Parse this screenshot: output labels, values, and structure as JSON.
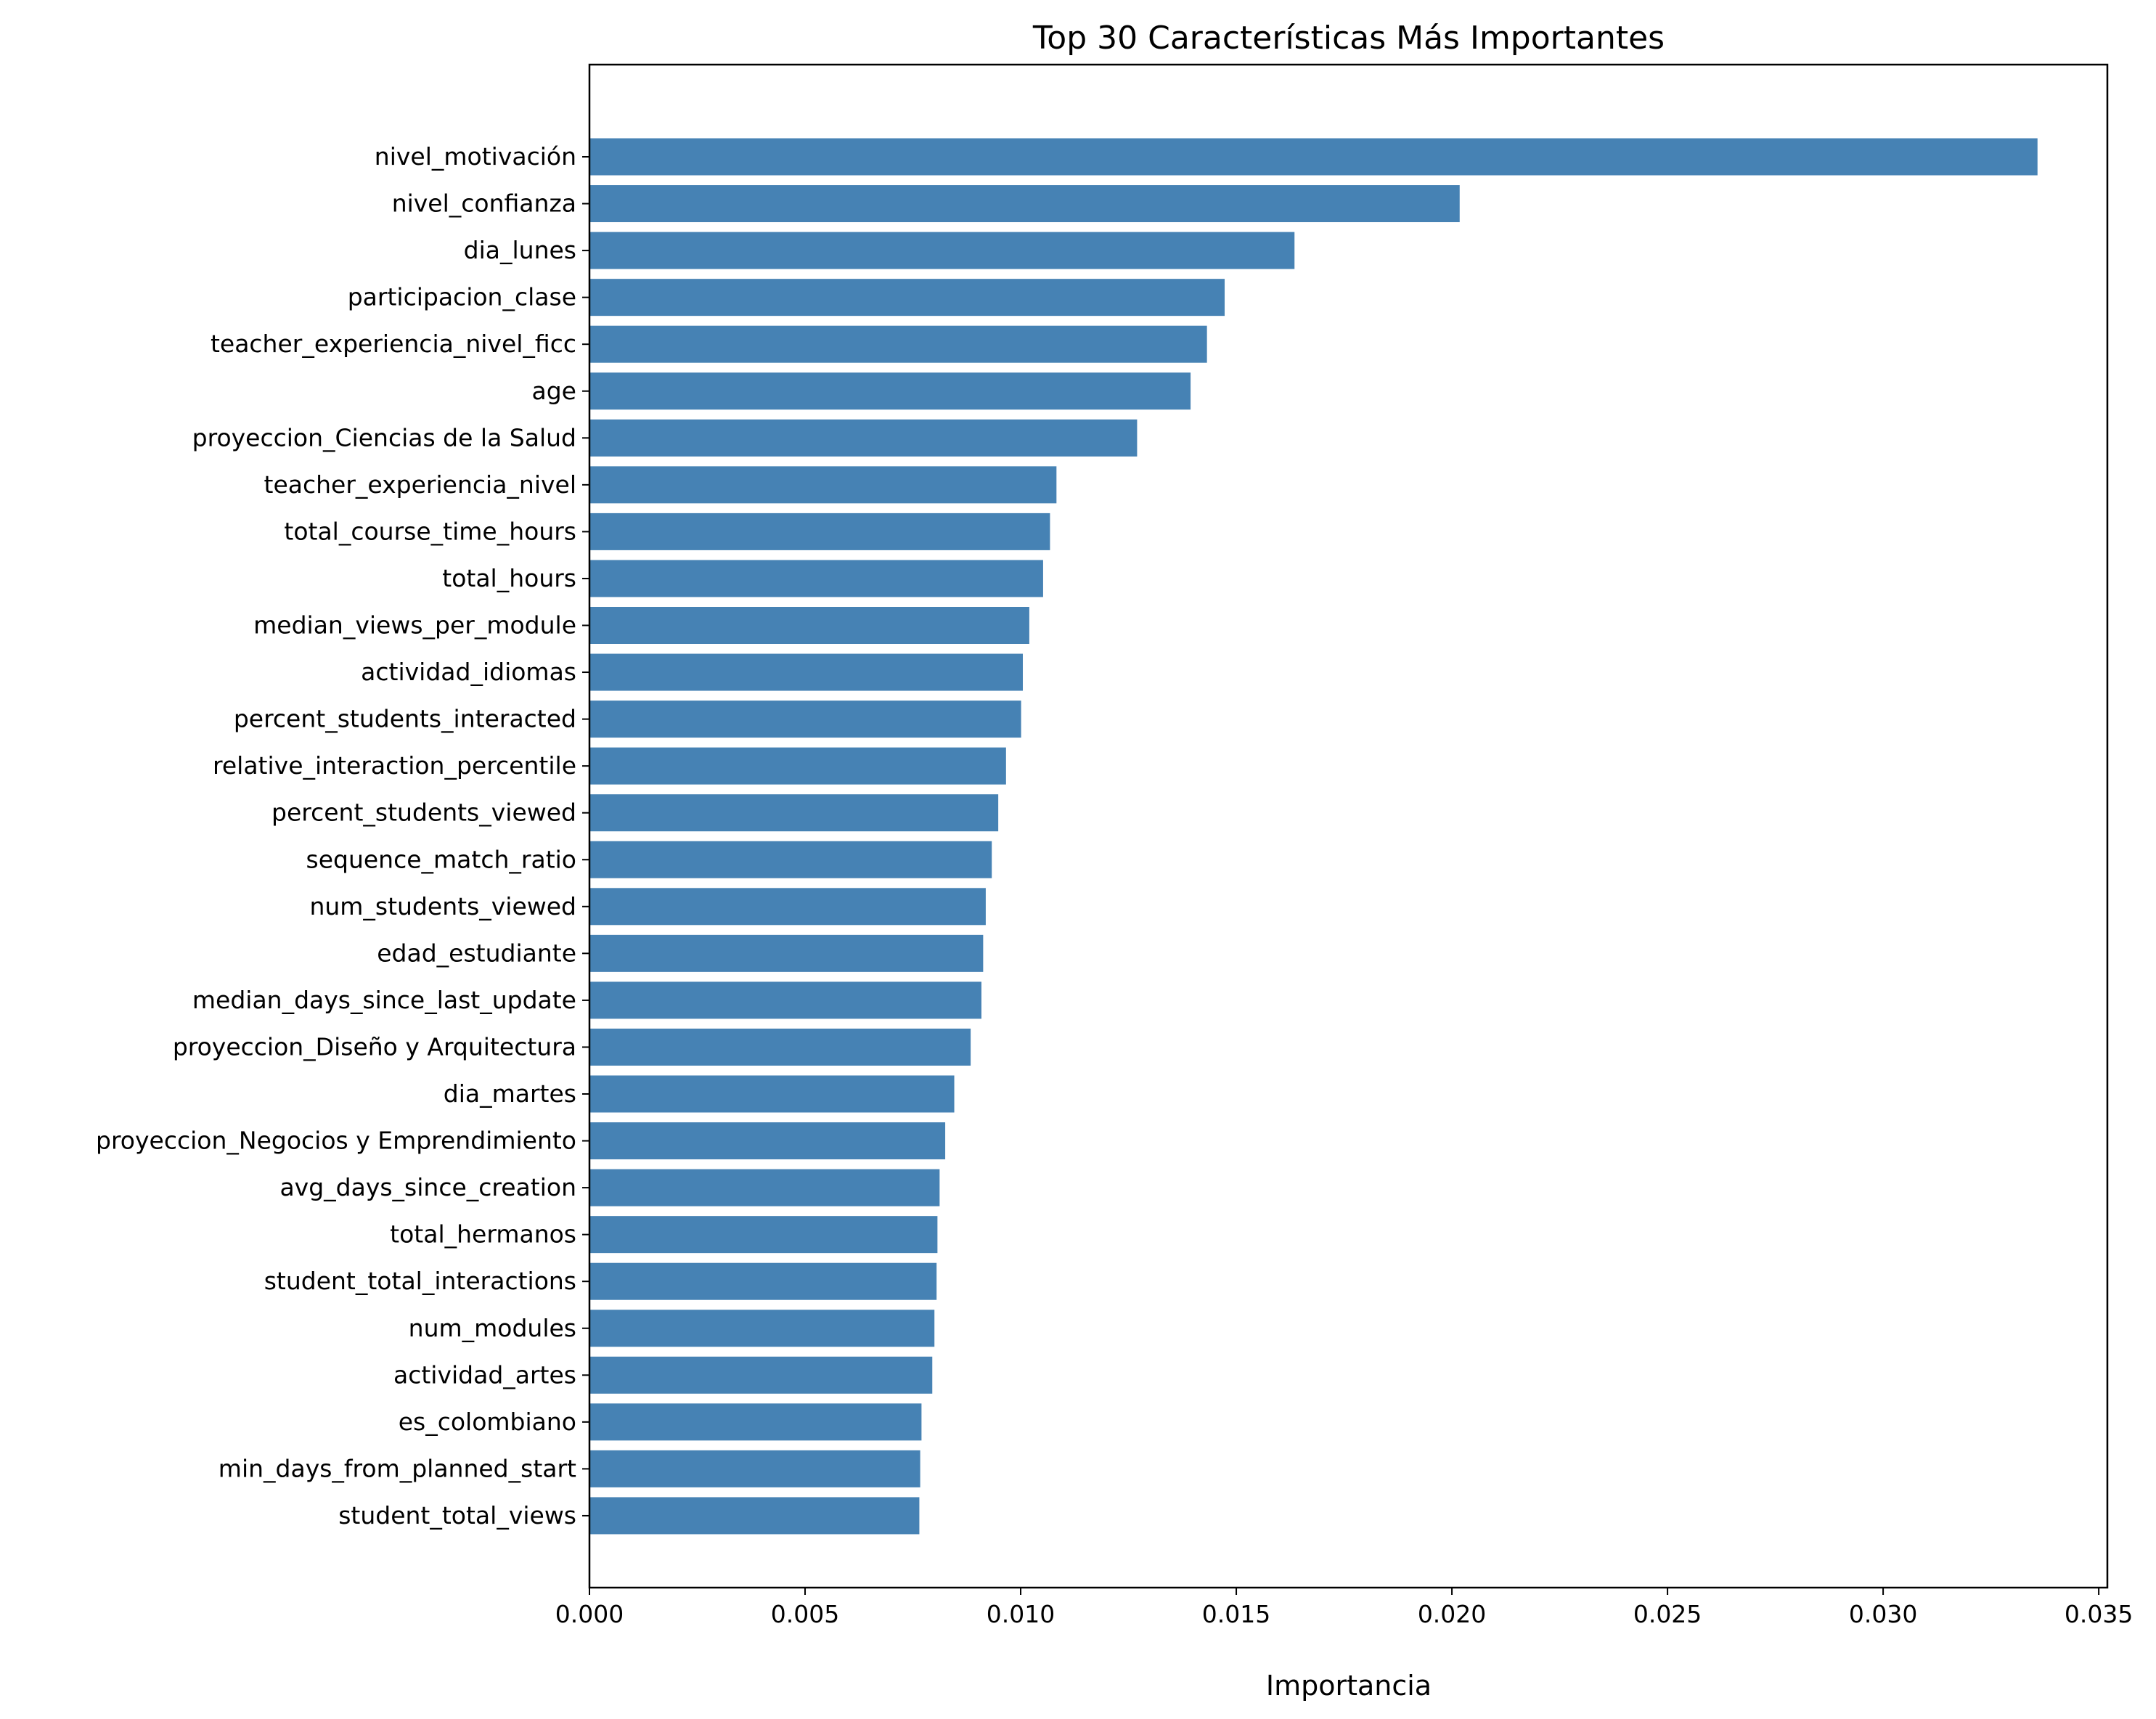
{
  "chart_data": {
    "type": "bar",
    "orientation": "horizontal",
    "title": "Top 30 Características Más Importantes",
    "xlabel": "Importancia",
    "ylabel": "",
    "xlim": [
      0,
      0.0352
    ],
    "xticks": [
      0.0,
      0.005,
      0.01,
      0.015,
      0.02,
      0.025,
      0.03,
      0.035
    ],
    "xtick_labels": [
      "0.000",
      "0.005",
      "0.010",
      "0.015",
      "0.020",
      "0.025",
      "0.030",
      "0.035"
    ],
    "grid": false,
    "bar_color": "#4682b4",
    "categories": [
      "nivel_motivación",
      "nivel_confianza",
      "dia_lunes",
      "participacion_clase",
      "teacher_experiencia_nivel_ficc",
      "age",
      "proyeccion_Ciencias de la Salud",
      "teacher_experiencia_nivel",
      "total_course_time_hours",
      "total_hours",
      "median_views_per_module",
      "actividad_idiomas",
      "percent_students_interacted",
      "relative_interaction_percentile",
      "percent_students_viewed",
      "sequence_match_ratio",
      "num_students_viewed",
      "edad_estudiante",
      "median_days_since_last_update",
      "proyeccion_Diseño y Arquitectura",
      "dia_martes",
      "proyeccion_Negocios y Emprendimiento",
      "avg_days_since_creation",
      "total_hermanos",
      "student_total_interactions",
      "num_modules",
      "actividad_artes",
      "es_colombiano",
      "min_days_from_planned_start",
      "student_total_views"
    ],
    "values": [
      0.03358,
      0.02018,
      0.01635,
      0.01473,
      0.01432,
      0.01394,
      0.0127,
      0.01083,
      0.01068,
      0.01052,
      0.0102,
      0.01005,
      0.01001,
      0.00966,
      0.00948,
      0.00933,
      0.00919,
      0.00913,
      0.00909,
      0.00884,
      0.00846,
      0.00825,
      0.00812,
      0.00807,
      0.00805,
      0.008,
      0.00795,
      0.0077,
      0.00767,
      0.00765
    ]
  }
}
